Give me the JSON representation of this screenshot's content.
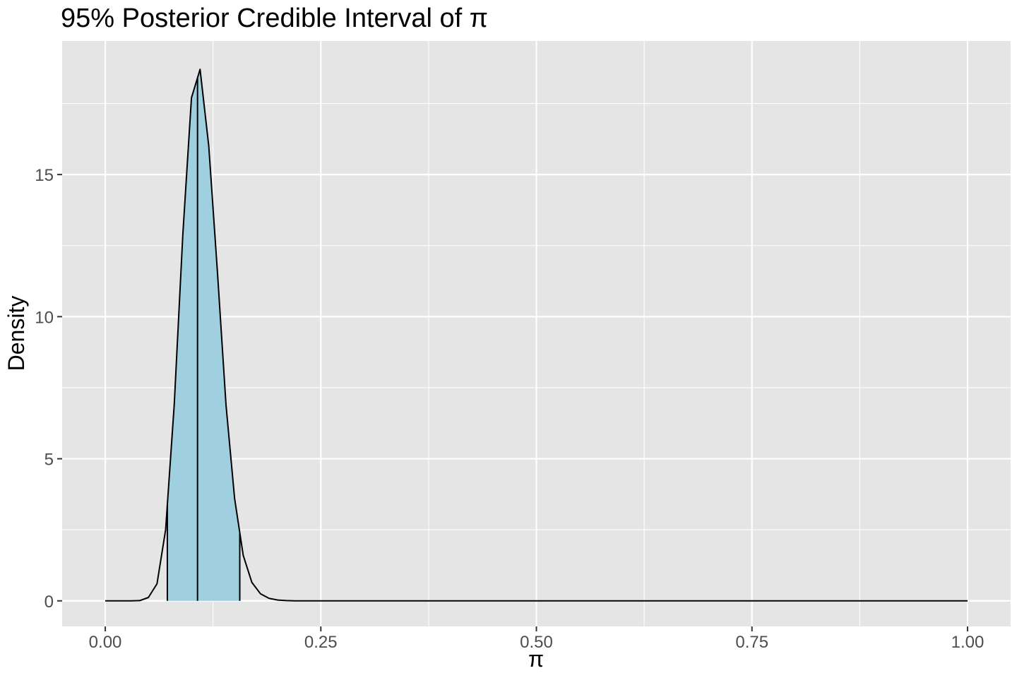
{
  "chart_data": {
    "type": "area",
    "title": "95% Posterior Credible Interval of π",
    "xlabel": "π",
    "ylabel": "Density",
    "xlim": [
      -0.05,
      1.05
    ],
    "ylim": [
      -0.9,
      19.7
    ],
    "x_ticks": [
      0,
      0.25,
      0.5,
      0.75,
      1
    ],
    "x_tick_labels": [
      "0.00",
      "0.25",
      "0.50",
      "0.75",
      "1.00"
    ],
    "y_ticks": [
      0,
      5,
      10,
      15
    ],
    "y_tick_labels": [
      "0",
      "5",
      "10",
      "15"
    ],
    "x_minor": [
      0.125,
      0.375,
      0.625,
      0.875
    ],
    "y_minor": [
      2.5,
      7.5,
      12.5,
      17.5
    ],
    "grid": true,
    "legend": "none",
    "colors": {
      "panel": "#e5e5e5",
      "grid": "#ffffff",
      "fill": "#a0d0e0",
      "line": "#000000",
      "tick_text": "#4d4d4d"
    },
    "series": [
      {
        "x": [
          0,
          0.01,
          0.02,
          0.03,
          0.04,
          0.05,
          0.06,
          0.07,
          0.08,
          0.09,
          0.1,
          0.11,
          0.12,
          0.13,
          0.14,
          0.15,
          0.16,
          0.17,
          0.18,
          0.19,
          0.2,
          0.21,
          0.22,
          0.23,
          0.24,
          0.25,
          0.3,
          0.4,
          0.5,
          0.6,
          0.7,
          0.8,
          0.9,
          1
        ],
        "y": [
          0,
          0,
          0,
          0,
          0.01,
          0.12,
          0.6,
          2.5,
          6.9,
          12.9,
          17.7,
          18.7,
          16.0,
          11.6,
          6.9,
          3.6,
          1.6,
          0.65,
          0.25,
          0.09,
          0.03,
          0.01,
          0,
          0,
          0,
          0,
          0,
          0,
          0,
          0,
          0,
          0,
          0,
          0
        ]
      }
    ],
    "interval": {
      "lower": 0.072,
      "upper": 0.156,
      "marked": 0.107
    }
  }
}
